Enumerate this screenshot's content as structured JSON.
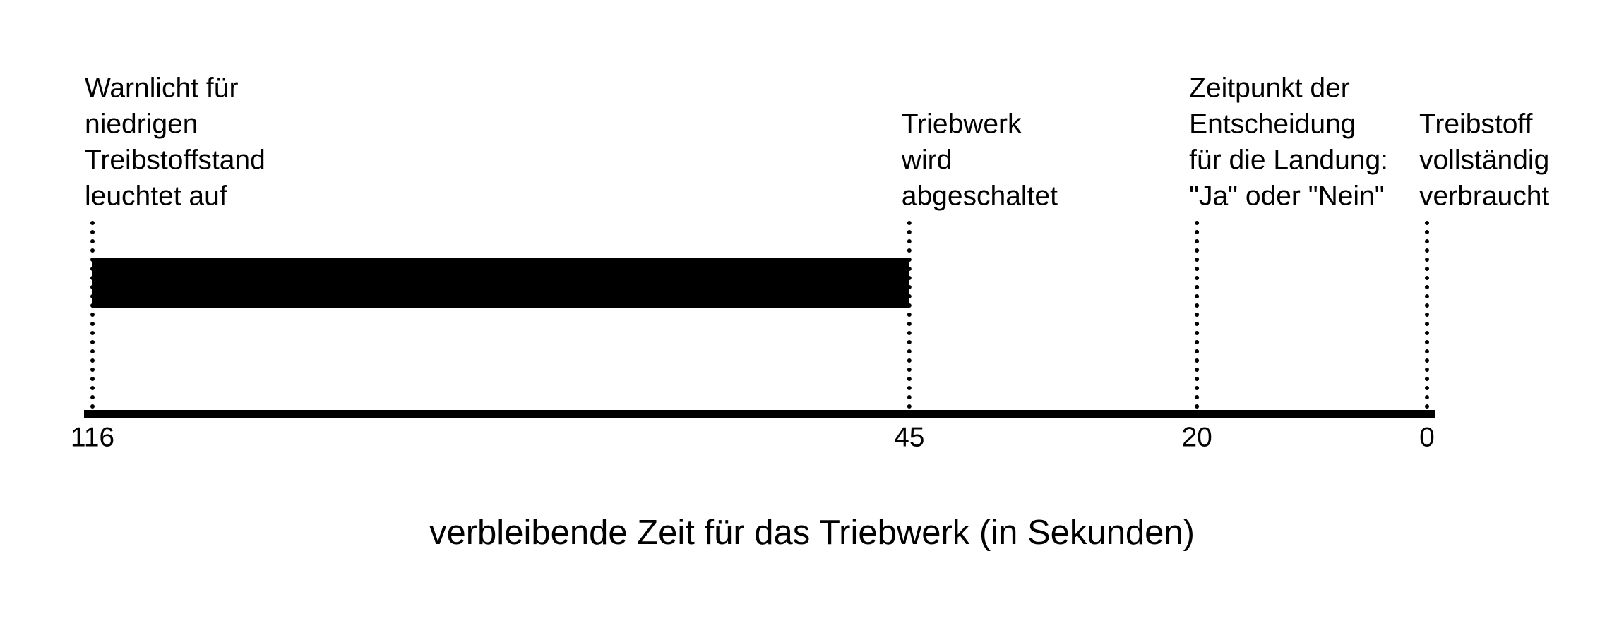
{
  "title": "verbleibende Zeit für das Triebwerk (in Sekunden)",
  "axis": {
    "xlim": [
      116,
      0
    ]
  },
  "events": [
    {
      "time": 116,
      "label": [
        "Warnlicht für",
        "niedrigen",
        "Treibstoffstand",
        "leuchtet auf"
      ]
    },
    {
      "time": 45,
      "label": [
        "Triebwerk",
        "wird",
        "abgeschaltet"
      ]
    },
    {
      "time": 20,
      "label": [
        "Zeitpunkt der",
        "Entscheidung",
        "für die Landung:",
        "\"Ja\" oder \"Nein\""
      ]
    },
    {
      "time": 0,
      "label": [
        "Treibstoff",
        "vollständig",
        "verbraucht"
      ]
    }
  ]
}
